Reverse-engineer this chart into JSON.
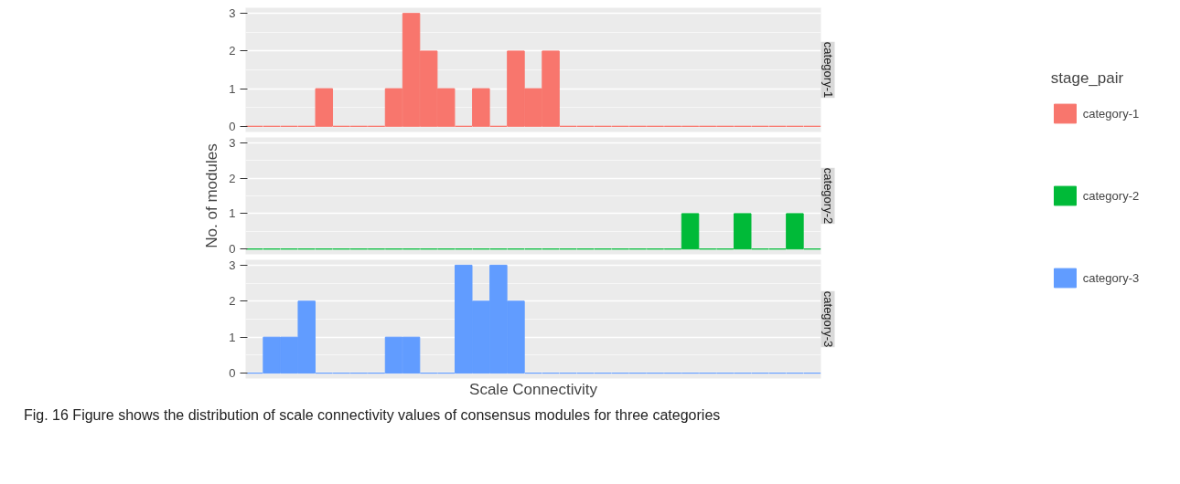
{
  "chart_data": [
    {
      "type": "bar",
      "title": "category-1",
      "legend_title": "stage_pair",
      "legend": "right",
      "grid": "y",
      "tick_labels": "y",
      "categories": [
        null,
        null,
        null,
        null,
        null,
        null,
        null,
        null,
        null,
        null,
        null,
        null,
        null,
        null,
        null,
        null,
        null,
        null,
        null,
        null,
        null,
        null,
        null,
        null,
        null,
        null,
        null,
        null,
        null,
        null,
        null,
        null,
        null
      ],
      "series": [
        {
          "name": "category-1",
          "color": "#f8766d",
          "values": [
            0,
            0,
            0,
            0,
            1,
            0,
            0,
            0,
            1,
            3,
            2,
            1,
            0,
            1,
            0,
            2,
            1,
            2,
            0,
            0,
            0,
            0,
            0,
            0,
            0,
            0,
            0,
            0,
            0,
            0,
            0,
            0,
            0
          ]
        }
      ],
      "ylim": [
        -0.15,
        3.15
      ],
      "yticks": [
        0,
        1,
        2,
        3
      ]
    },
    {
      "type": "bar",
      "title": "category-2",
      "ylabel": "No. of modules",
      "legend": "right",
      "grid": "y",
      "tick_labels": "y",
      "categories": [
        null,
        null,
        null,
        null,
        null,
        null,
        null,
        null,
        null,
        null,
        null,
        null,
        null,
        null,
        null,
        null,
        null,
        null,
        null,
        null,
        null,
        null,
        null,
        null,
        null,
        null,
        null,
        null,
        null,
        null,
        null,
        null,
        null
      ],
      "series": [
        {
          "name": "category-2",
          "color": "#00ba38",
          "values": [
            0,
            0,
            0,
            0,
            0,
            0,
            0,
            0,
            0,
            0,
            0,
            0,
            0,
            0,
            0,
            0,
            0,
            0,
            0,
            0,
            0,
            0,
            0,
            0,
            0,
            1,
            0,
            0,
            1,
            0,
            0,
            1,
            0
          ]
        }
      ],
      "ylim": [
        -0.15,
        3.15
      ],
      "yticks": [
        0,
        1,
        2,
        3
      ]
    },
    {
      "type": "bar",
      "title": "category-3",
      "xlabel": "Scale Connectivity",
      "legend": "right",
      "grid": "y",
      "tick_labels": "y",
      "categories": [
        null,
        null,
        null,
        null,
        null,
        null,
        null,
        null,
        null,
        null,
        null,
        null,
        null,
        null,
        null,
        null,
        null,
        null,
        null,
        null,
        null,
        null,
        null,
        null,
        null,
        null,
        null,
        null,
        null,
        null,
        null,
        null,
        null
      ],
      "series": [
        {
          "name": "category-3",
          "color": "#619cff",
          "values": [
            0,
            1,
            1,
            2,
            0,
            0,
            0,
            0,
            1,
            1,
            0,
            0,
            3,
            2,
            3,
            2,
            0,
            0,
            0,
            0,
            0,
            0,
            0,
            0,
            0,
            0,
            0,
            0,
            0,
            0,
            0,
            0,
            0
          ]
        }
      ],
      "ylim": [
        -0.15,
        3.15
      ],
      "yticks": [
        0,
        1,
        2,
        3
      ],
      "annotations": [
        "Fig. 16 Figure shows the distribution of scale connectivity values of consensus modules for three categories"
      ]
    }
  ]
}
